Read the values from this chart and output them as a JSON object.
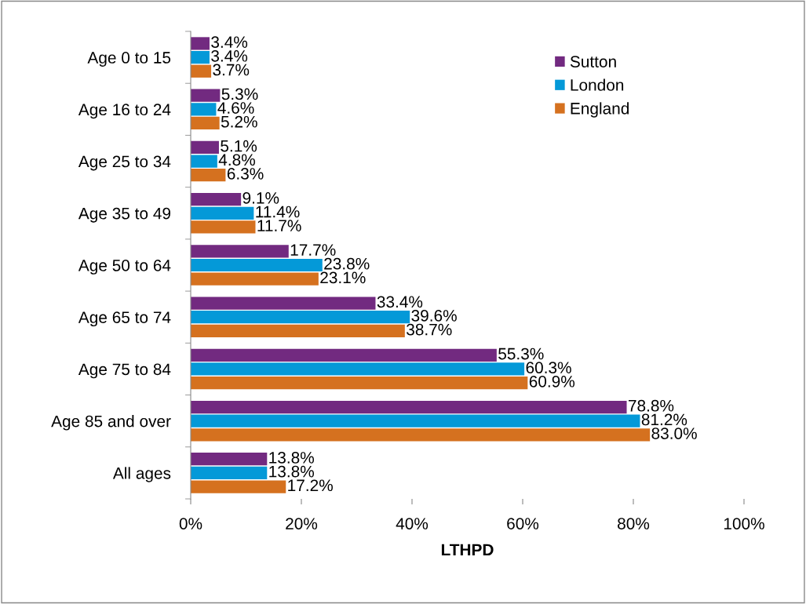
{
  "chart_data": {
    "type": "bar",
    "orientation": "horizontal",
    "xlabel": "LTHPD",
    "categories": [
      "Age 0 to 15",
      "Age 16 to 24",
      "Age 25 to 34",
      "Age 35 to 49",
      "Age 50 to 64",
      "Age 65 to 74",
      "Age 75 to 84",
      "Age 85 and over",
      "All ages"
    ],
    "series": [
      {
        "name": "Sutton",
        "color": "#722a80",
        "values": [
          3.4,
          5.3,
          5.1,
          9.1,
          17.7,
          33.4,
          55.3,
          78.8,
          13.8
        ],
        "value_labels": [
          "3.4%",
          "5.3%",
          "5.1%",
          "9.1%",
          "17.7%",
          "33.4%",
          "55.3%",
          "78.8%",
          "13.8%"
        ]
      },
      {
        "name": "London",
        "color": "#0499d8",
        "values": [
          3.4,
          4.6,
          4.8,
          11.4,
          23.8,
          39.6,
          60.3,
          81.2,
          13.8
        ],
        "value_labels": [
          "3.4%",
          "4.6%",
          "4.8%",
          "11.4%",
          "23.8%",
          "39.6%",
          "60.3%",
          "81.2%",
          "13.8%"
        ]
      },
      {
        "name": "England",
        "color": "#d5711f",
        "values": [
          3.7,
          5.2,
          6.3,
          11.7,
          23.1,
          38.7,
          60.9,
          83.0,
          17.2
        ],
        "value_labels": [
          "3.7%",
          "5.2%",
          "6.3%",
          "11.7%",
          "23.1%",
          "38.7%",
          "60.9%",
          "83.0%",
          "17.2%"
        ]
      }
    ],
    "xlim": [
      0,
      100
    ],
    "xticks": [
      {
        "value": 0,
        "label": "0%"
      },
      {
        "value": 20,
        "label": "20%"
      },
      {
        "value": 40,
        "label": "40%"
      },
      {
        "value": 60,
        "label": "60%"
      },
      {
        "value": 80,
        "label": "80%"
      },
      {
        "value": 100,
        "label": "100%"
      }
    ],
    "legend": "top right",
    "grid": false
  }
}
